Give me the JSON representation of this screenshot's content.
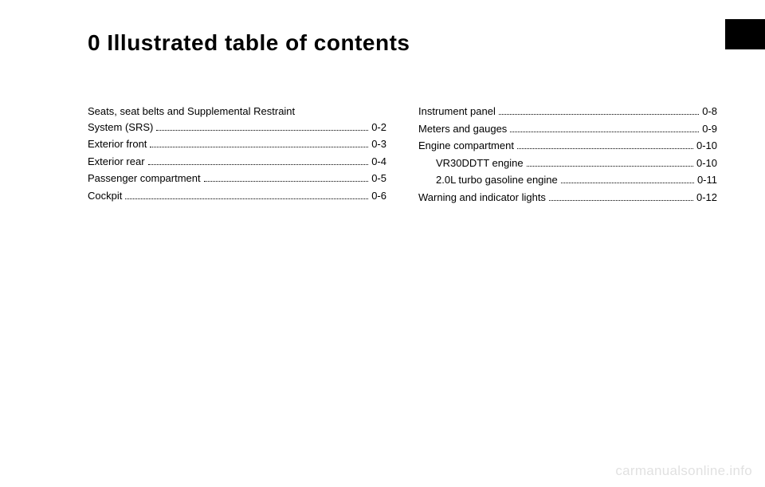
{
  "chapter_number": "0",
  "chapter_title": "Illustrated table of contents",
  "tab_color": "#000000",
  "background_color": "#ffffff",
  "title_fontsize": 28,
  "body_fontsize": 13,
  "left_column": [
    {
      "label_line1": "Seats, seat belts and Supplemental Restraint",
      "label_line2": "System (SRS)",
      "page": "0-2",
      "indent": 0
    },
    {
      "label": "Exterior front",
      "page": "0-3",
      "indent": 0
    },
    {
      "label": "Exterior rear",
      "page": "0-4",
      "indent": 0
    },
    {
      "label": "Passenger compartment",
      "page": "0-5",
      "indent": 0
    },
    {
      "label": "Cockpit",
      "page": "0-6",
      "indent": 0
    }
  ],
  "right_column": [
    {
      "label": "Instrument panel",
      "page": "0-8",
      "indent": 0
    },
    {
      "label": "Meters and gauges",
      "page": "0-9",
      "indent": 0
    },
    {
      "label": "Engine compartment",
      "page": "0-10",
      "indent": 0
    },
    {
      "label": "VR30DDTT engine",
      "page": "0-10",
      "indent": 1
    },
    {
      "label": "2.0L turbo gasoline engine",
      "page": "0-11",
      "indent": 1
    },
    {
      "label": "Warning and indicator lights",
      "page": "0-12",
      "indent": 0
    }
  ],
  "watermark": "carmanualsonline.info"
}
